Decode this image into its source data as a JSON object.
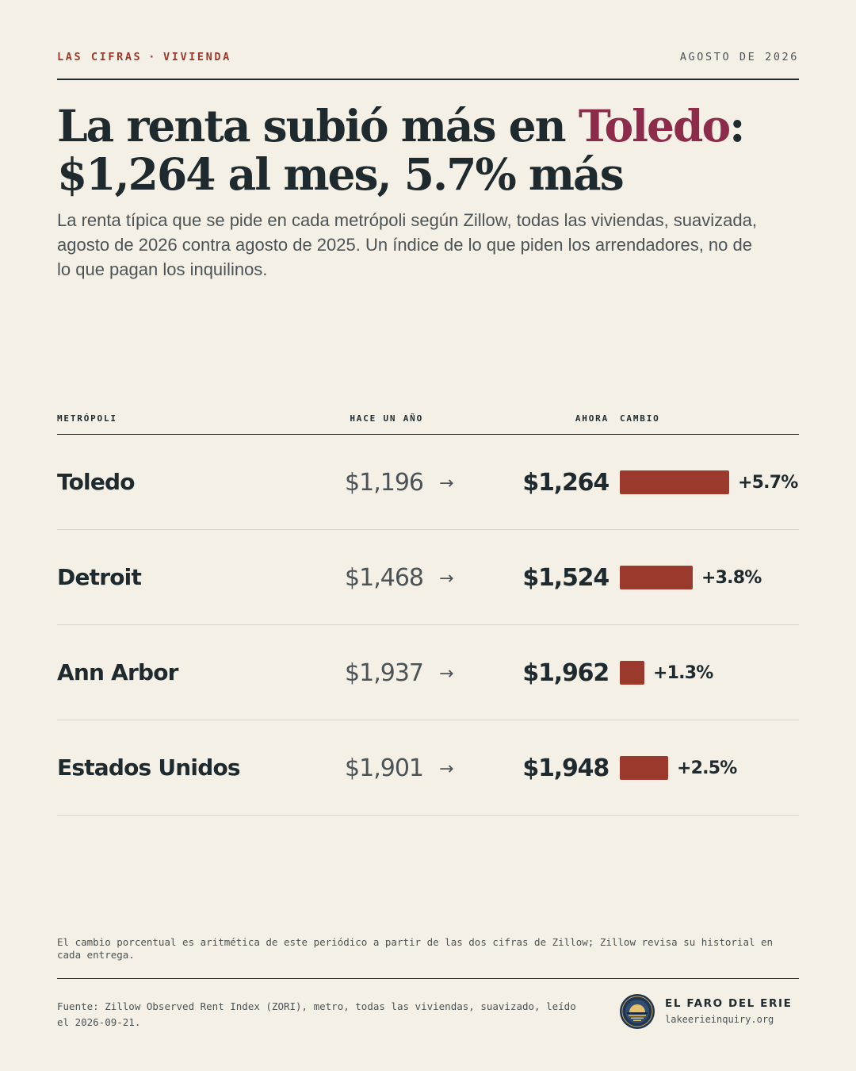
{
  "header": {
    "kicker_section": "LAS CIFRAS",
    "kicker_separator": "·",
    "kicker_topic": "VIVIENDA",
    "dateline": "AGOSTO DE 2026"
  },
  "headline": {
    "before": "La renta subió más en ",
    "accent": "Toledo",
    "after": ":",
    "line2": "$1,264 al mes, 5.7% más"
  },
  "dek": "La renta típica que se pide en cada metrópoli según Zillow, todas las viviendas, suavizada, agosto de 2026 contra agosto de 2025. Un índice de lo que piden los arrendadores, no de lo que pagan los inquilinos.",
  "table": {
    "col_metro": "METRÓPOLI",
    "col_prev": "HACE UN AÑO",
    "col_now": "AHORA",
    "col_change": "CAMBIO"
  },
  "chart_data": {
    "type": "table",
    "columns": [
      "METRÓPOLI",
      "HACE UN AÑO",
      "AHORA",
      "CAMBIO"
    ],
    "arrow": "→",
    "bar_scale_max_pct": 5.7,
    "rows": [
      {
        "metro": "Toledo",
        "prev": "$1,196",
        "now": "$1,264",
        "change": "+5.7%",
        "change_pct": 5.7
      },
      {
        "metro": "Detroit",
        "prev": "$1,468",
        "now": "$1,524",
        "change": "+3.8%",
        "change_pct": 3.8
      },
      {
        "metro": "Ann Arbor",
        "prev": "$1,937",
        "now": "$1,962",
        "change": "+1.3%",
        "change_pct": 1.3
      },
      {
        "metro": "Estados Unidos",
        "prev": "$1,901",
        "now": "$1,948",
        "change": "+2.5%",
        "change_pct": 2.5
      }
    ]
  },
  "colors": {
    "background": "#f5f0e6",
    "ink": "#1e2a2e",
    "accent_headline": "#8c2c4a",
    "bar": "#9b3a2c",
    "kicker": "#9b3a2c"
  },
  "note": "El cambio porcentual es aritmética de este periódico a partir de las dos cifras de Zillow; Zillow revisa su historial en cada entrega.",
  "footer": {
    "source": "Fuente: Zillow Observed Rent Index (ZORI), metro, todas las viviendas, suavizado, leído el 2026-09-21.",
    "brand_name": "EL FARO DEL ERIE",
    "brand_url": "lakeerieinquiry.org",
    "brand_icon": "lighthouse-seal-icon"
  }
}
